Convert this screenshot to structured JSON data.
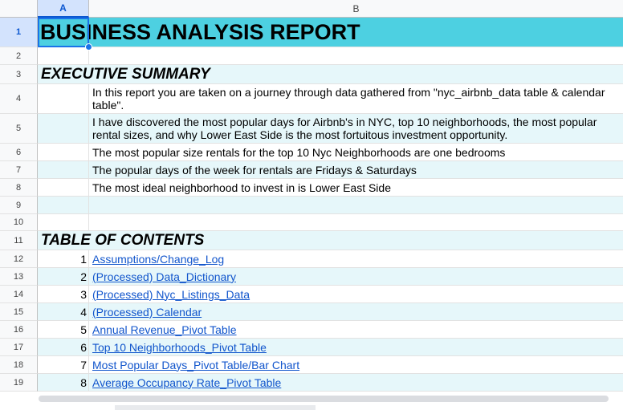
{
  "columns": {
    "a": "A",
    "b": "B"
  },
  "row_numbers": [
    "1",
    "2",
    "3",
    "4",
    "5",
    "6",
    "7",
    "8",
    "9",
    "10",
    "11",
    "12",
    "13",
    "14",
    "15",
    "16",
    "17",
    "18",
    "19"
  ],
  "title": "BUSINESS ANALYSIS REPORT",
  "executive_summary": {
    "heading": "EXECUTIVE SUMMARY",
    "lines": [
      "In this report you are taken on a journey through data gathered from \"nyc_airbnb_data table & calendar table\".",
      "I have discovered the most popular days for Airbnb's in NYC, top 10 neighborhoods, the most popular rental sizes, and why Lower East Side is the most fortuitous investment opportunity.",
      "The most popular size rentals for the top 10 Nyc Neighborhoods are one bedrooms",
      "The popular days of the week for rentals are Fridays & Saturdays",
      "The most ideal neighborhood to invest in is Lower East Side"
    ]
  },
  "toc": {
    "heading": "TABLE OF CONTENTS",
    "items": [
      {
        "num": "1",
        "label": "Assumptions/Change_Log"
      },
      {
        "num": "2",
        "label": "(Processed) Data_Dictionary"
      },
      {
        "num": "3",
        "label": "(Processed) Nyc_Listings_Data"
      },
      {
        "num": "4",
        "label": "(Processed) Calendar"
      },
      {
        "num": "5",
        "label": "Annual Revenue_Pivot Table "
      },
      {
        "num": "6",
        "label": "Top 10 Neighborhoods_Pivot Table"
      },
      {
        "num": "7",
        "label": "Most Popular Days_Pivot Table/Bar Chart "
      },
      {
        "num": "8",
        "label": "Average Occupancy Rate_Pivot Table "
      }
    ]
  },
  "colors": {
    "title_bg": "#4dd0e1",
    "band_bg": "#e6f7fa",
    "link": "#1155cc",
    "selection": "#1a73e8"
  }
}
